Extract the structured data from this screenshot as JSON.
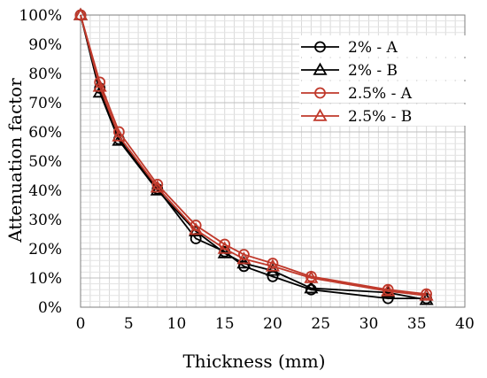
{
  "chart_data": {
    "type": "line",
    "xlabel": "Thickness (mm)",
    "ylabel": "Attenuation factor",
    "xlim": [
      0,
      40
    ],
    "ylim": [
      0,
      100
    ],
    "x_ticks": [
      "0",
      "5",
      "10",
      "15",
      "20",
      "25",
      "30",
      "35",
      "40"
    ],
    "y_ticks": [
      "0%",
      "10%",
      "20%",
      "30%",
      "40%",
      "50%",
      "60%",
      "70%",
      "80%",
      "90%",
      "100%"
    ],
    "grid": true,
    "legend_position": "top-right",
    "series": [
      {
        "name": "2% - A",
        "marker": "circle",
        "color": "#000000",
        "x": [
          0,
          2,
          4,
          8,
          12,
          15,
          17,
          20,
          24,
          32,
          36
        ],
        "y": [
          100,
          75,
          57.5,
          40.5,
          23.5,
          19,
          14,
          10.5,
          6,
          3,
          3
        ]
      },
      {
        "name": "2% - B",
        "marker": "triangle",
        "color": "#000000",
        "x": [
          0,
          2,
          4,
          8,
          12,
          15,
          17,
          20,
          24,
          32,
          36
        ],
        "y": [
          100,
          73.5,
          57,
          40,
          26,
          18.5,
          15,
          12.5,
          6.5,
          5,
          2.5
        ]
      },
      {
        "name": "2.5% - A",
        "marker": "circle",
        "color": "#c0392b",
        "x": [
          0,
          2,
          4,
          8,
          12,
          15,
          17,
          20,
          24,
          32,
          36
        ],
        "y": [
          100,
          77,
          60,
          42,
          28,
          21.5,
          18,
          15,
          10.5,
          6,
          4.5
        ]
      },
      {
        "name": "2.5% - B",
        "marker": "triangle",
        "color": "#c0392b",
        "x": [
          0,
          2,
          4,
          8,
          12,
          15,
          17,
          20,
          24,
          32,
          36
        ],
        "y": [
          100,
          75.5,
          58.5,
          41,
          26.5,
          20,
          16.5,
          14,
          10,
          5.5,
          4
        ]
      }
    ]
  }
}
